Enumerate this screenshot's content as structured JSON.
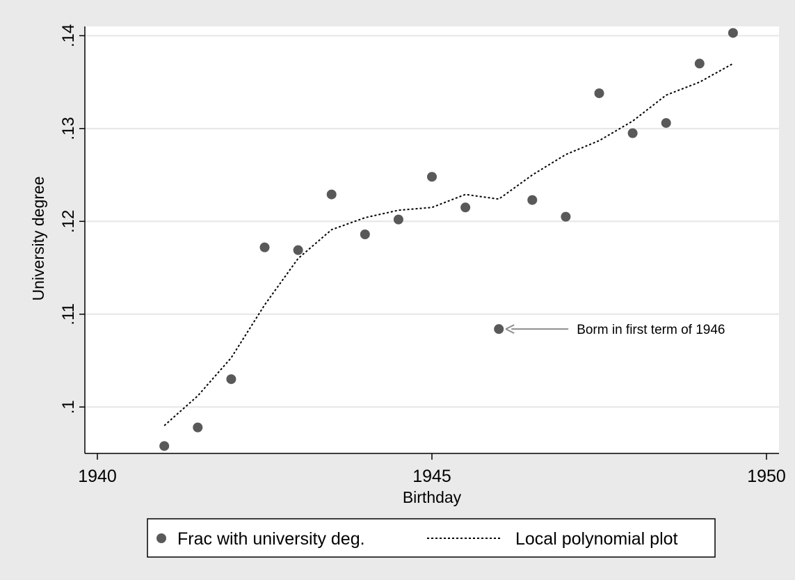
{
  "chart_data": {
    "type": "scatter",
    "xlabel": "Birthday",
    "ylabel": "University degree",
    "xlim": [
      1940,
      1950
    ],
    "ylim": [
      0.095,
      0.141
    ],
    "xticks": [
      {
        "value": 1940,
        "label": "1940"
      },
      {
        "value": 1945,
        "label": "1945"
      },
      {
        "value": 1950,
        "label": "1950"
      }
    ],
    "yticks": [
      {
        "value": 0.1,
        "label": ".1"
      },
      {
        "value": 0.11,
        "label": ".11"
      },
      {
        "value": 0.12,
        "label": ".12"
      },
      {
        "value": 0.13,
        "label": ".13"
      },
      {
        "value": 0.14,
        "label": ".14"
      }
    ],
    "grid": "horizontal",
    "legend_position": "bottom",
    "series": [
      {
        "name": "Frac with university deg.",
        "kind": "markers",
        "color": "#595959",
        "points": [
          {
            "x": 1941.0,
            "y": 0.0958
          },
          {
            "x": 1941.5,
            "y": 0.0978
          },
          {
            "x": 1942.0,
            "y": 0.103
          },
          {
            "x": 1942.5,
            "y": 0.1172
          },
          {
            "x": 1943.0,
            "y": 0.1169
          },
          {
            "x": 1943.5,
            "y": 0.1229
          },
          {
            "x": 1944.0,
            "y": 0.1186
          },
          {
            "x": 1944.5,
            "y": 0.1202
          },
          {
            "x": 1945.0,
            "y": 0.1248
          },
          {
            "x": 1945.5,
            "y": 0.1215
          },
          {
            "x": 1946.0,
            "y": 0.1084
          },
          {
            "x": 1946.5,
            "y": 0.1223
          },
          {
            "x": 1947.0,
            "y": 0.1205
          },
          {
            "x": 1947.5,
            "y": 0.1338
          },
          {
            "x": 1948.0,
            "y": 0.1295
          },
          {
            "x": 1948.5,
            "y": 0.1306
          },
          {
            "x": 1949.0,
            "y": 0.137
          },
          {
            "x": 1949.5,
            "y": 0.1403
          }
        ]
      },
      {
        "name": "Local polynomial plot",
        "kind": "dotted-line",
        "color": "#000000",
        "points": [
          {
            "x": 1941.0,
            "y": 0.098
          },
          {
            "x": 1941.5,
            "y": 0.1012
          },
          {
            "x": 1942.0,
            "y": 0.1053
          },
          {
            "x": 1942.5,
            "y": 0.111
          },
          {
            "x": 1943.0,
            "y": 0.116
          },
          {
            "x": 1943.5,
            "y": 0.1191
          },
          {
            "x": 1944.0,
            "y": 0.1204
          },
          {
            "x": 1944.5,
            "y": 0.1212
          },
          {
            "x": 1945.0,
            "y": 0.1215
          },
          {
            "x": 1945.5,
            "y": 0.1229
          },
          {
            "x": 1946.0,
            "y": 0.1224
          },
          {
            "x": 1946.5,
            "y": 0.125
          },
          {
            "x": 1947.0,
            "y": 0.1272
          },
          {
            "x": 1947.5,
            "y": 0.1287
          },
          {
            "x": 1948.0,
            "y": 0.1308
          },
          {
            "x": 1948.5,
            "y": 0.1336
          },
          {
            "x": 1949.0,
            "y": 0.135
          },
          {
            "x": 1949.5,
            "y": 0.137
          }
        ]
      }
    ],
    "annotations": [
      {
        "text": "Borm in first term of 1946",
        "x": 1946.0,
        "y": 0.1084,
        "arrow": true
      }
    ]
  }
}
